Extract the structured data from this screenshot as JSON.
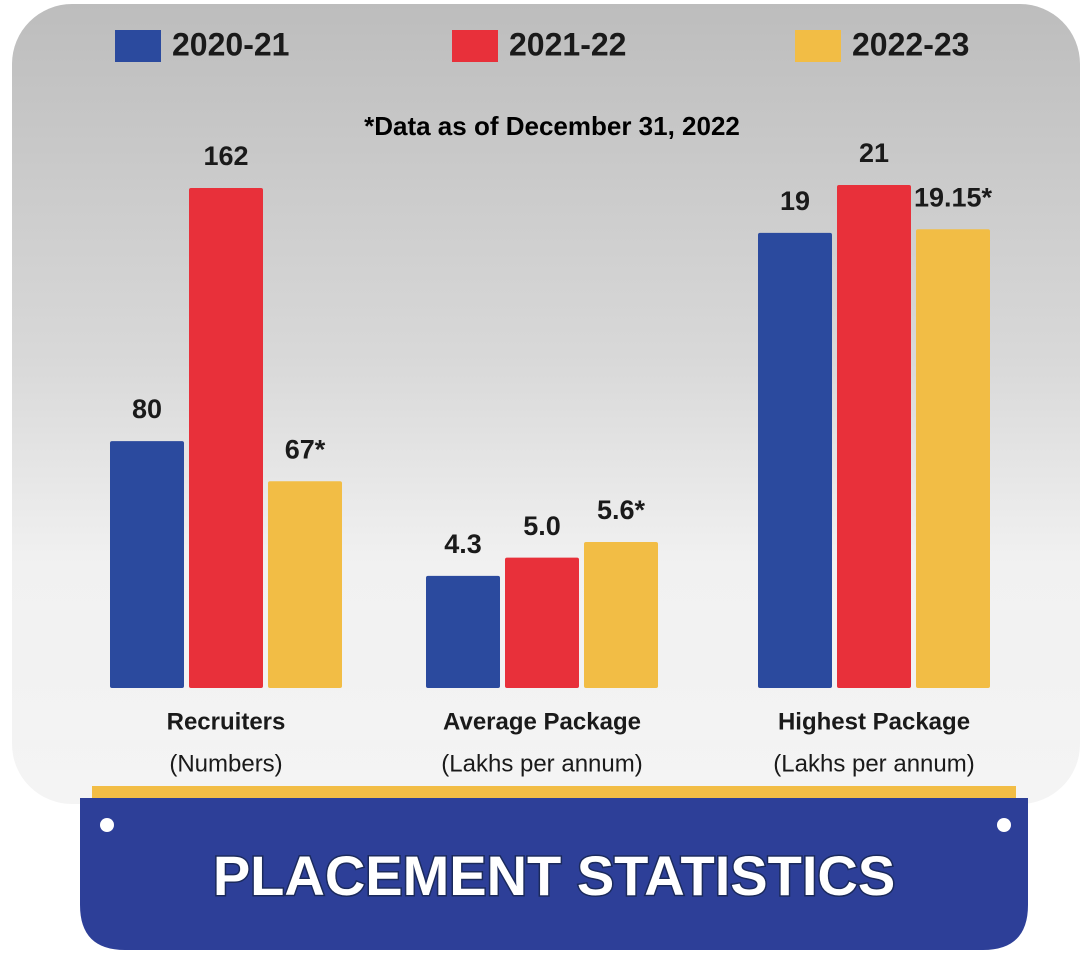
{
  "chart_data": {
    "type": "bar",
    "title": "PLACEMENT STATISTICS",
    "note": "*Data as of December 31, 2022",
    "categories": [
      "Recruiters",
      "Average Package",
      "Highest Package"
    ],
    "category_units": [
      "(Numbers)",
      "(Lakhs per annum)",
      "(Lakhs per annum)"
    ],
    "series": [
      {
        "name": "2020-21",
        "color": "#2b4a9e",
        "values": [
          80,
          4.3,
          19
        ]
      },
      {
        "name": "2021-22",
        "color": "#e8303a",
        "values": [
          162,
          5.0,
          21
        ],
        "value_labels": [
          "162",
          "5.0",
          "21"
        ]
      },
      {
        "name": "2022-23",
        "color": "#f2bd45",
        "values": [
          67,
          5.6,
          19.15
        ],
        "value_labels": [
          "67*",
          "5.6*",
          "19.15*"
        ]
      }
    ]
  }
}
